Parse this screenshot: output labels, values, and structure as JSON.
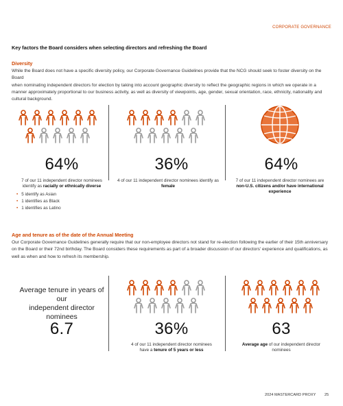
{
  "header": {
    "section": "CORPORATE GOVERNANCE"
  },
  "title": "Key factors the Board considers when selecting directors and refreshing the Board",
  "diversity": {
    "heading": "Diversity",
    "lines": [
      "While the Board does not have a specific diversity policy, our Corporate Governance Guidelines provide that the NCG should seek to foster diversity on the Board",
      "when nominating independent directors for election by taking into account geographic diversity to reflect the geographic regions in which we operate in a",
      "manner approximately proportional to our business activity, as well as diversity of viewpoints, age, gender, sexual orientation, race, ethnicity, nationality and",
      "cultural background."
    ]
  },
  "stats_top": [
    {
      "value": "64%",
      "caption_pre": "7 of our 11 independent director nominees",
      "caption_line2_pre": "identify as ",
      "caption_bold": "racially or ethnically diverse",
      "icon": "people-icon-grid",
      "highlight": 7
    },
    {
      "value": "36%",
      "caption_pre": "4 of our 11 independent director nominees identify as",
      "caption_line2_pre": "",
      "caption_bold": "female",
      "icon": "people-icon-grid",
      "highlight": 4
    },
    {
      "value": "64%",
      "caption_pre": "7 of our 11 independent director nominees are",
      "caption_line2_pre": "",
      "caption_bold": "non-U.S. citizens and/or have international experience",
      "icon": "globe-icon"
    }
  ],
  "diverse_breakdown": [
    "5 identify as Asian",
    "1 identifies as Black",
    "1 identifies as Latino"
  ],
  "tenure": {
    "heading": "Age and tenure as of the date of the Annual Meeting",
    "lines": [
      "Our Corporate Governance Guidelines generally require that our non-employee directors not stand for re-election following the earlier of their 15th anniversary",
      "on the Board or their 72nd birthday. The Board considers these requirements as part of a broader discussion of our directors' experience and qualifications, as",
      "well as when and how to refresh its membership."
    ]
  },
  "stats_bottom": [
    {
      "label_line1": "Average tenure in years of our",
      "label_line2": "independent director nominees",
      "value": "6.7"
    },
    {
      "value": "36%",
      "caption_line1": "4 of our 11 independent director nominees",
      "caption_line2_pre": "have a ",
      "caption_bold": "tenure of 5 years or less",
      "highlight": 4
    },
    {
      "value": "63",
      "caption_bold": "Average age",
      "caption_rest": " of our independent director",
      "caption_line2": "nominees",
      "highlight": 11
    }
  ],
  "colors": {
    "accent": "#cf4500",
    "muted": "#9a9a9a"
  },
  "footer": {
    "doc": "2024 MASTERCARD PROXY",
    "page": "25"
  }
}
